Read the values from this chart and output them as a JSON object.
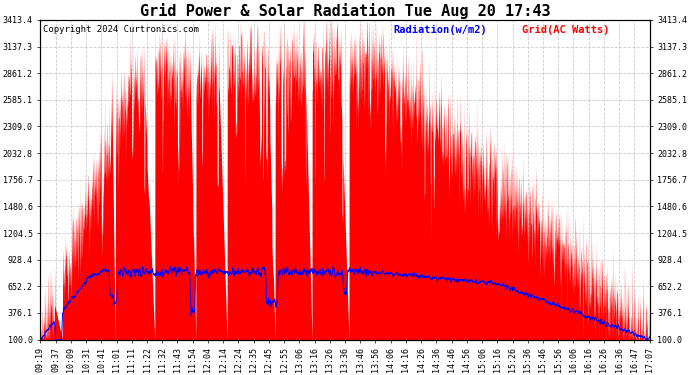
{
  "title": "Grid Power & Solar Radiation Tue Aug 20 17:43",
  "copyright": "Copyright 2024 Curtronics.com",
  "legend_radiation": "Radiation(w/m2)",
  "legend_grid": "Grid(AC Watts)",
  "legend_radiation_color": "blue",
  "legend_grid_color": "red",
  "yticks": [
    100.0,
    376.1,
    652.2,
    928.4,
    1204.5,
    1480.6,
    1756.7,
    2032.8,
    2309.0,
    2585.1,
    2861.2,
    3137.3,
    3413.4
  ],
  "ymin": 100.0,
  "ymax": 3413.4,
  "background_color": "#ffffff",
  "plot_bg_color": "#ffffff",
  "grid_color": "#cccccc",
  "title_fontsize": 11,
  "copyright_fontsize": 6.5,
  "tick_fontsize": 6,
  "legend_fontsize": 7.5,
  "xtick_labels": [
    "09:19",
    "09:37",
    "10:09",
    "10:31",
    "10:41",
    "11:01",
    "11:11",
    "11:22",
    "11:32",
    "11:43",
    "11:54",
    "12:04",
    "12:14",
    "12:24",
    "12:35",
    "12:45",
    "12:55",
    "13:06",
    "13:16",
    "13:26",
    "13:36",
    "13:46",
    "13:56",
    "14:06",
    "14:16",
    "14:26",
    "14:36",
    "14:46",
    "14:56",
    "15:06",
    "15:16",
    "15:26",
    "15:36",
    "15:46",
    "15:56",
    "16:06",
    "16:16",
    "16:26",
    "16:36",
    "16:47",
    "17:07"
  ]
}
